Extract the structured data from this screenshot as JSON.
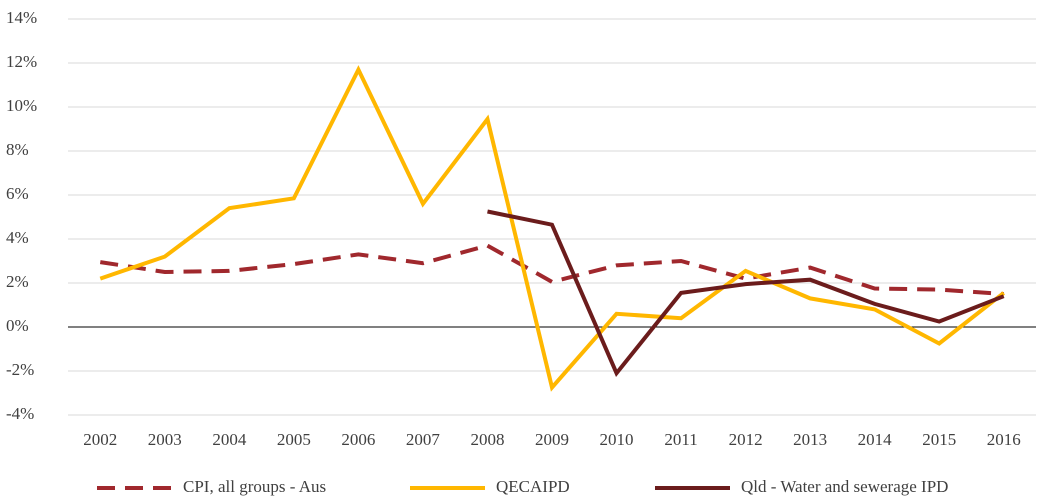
{
  "chart_data": {
    "type": "line",
    "categories": [
      "2002",
      "2003",
      "2004",
      "2005",
      "2006",
      "2007",
      "2008",
      "2009",
      "2010",
      "2011",
      "2012",
      "2013",
      "2014",
      "2015",
      "2016"
    ],
    "series": [
      {
        "name": "CPI, all groups - Aus",
        "color": "#a0282d",
        "dash": true,
        "values": [
          2.95,
          2.5,
          2.55,
          2.86,
          3.3,
          2.9,
          3.7,
          2.05,
          2.8,
          3.0,
          2.2,
          2.7,
          1.75,
          1.7,
          1.5
        ]
      },
      {
        "name": "QECAIPD",
        "color": "#ffb700",
        "dash": false,
        "values": [
          2.2,
          3.2,
          5.4,
          5.85,
          11.7,
          5.6,
          9.45,
          -2.75,
          0.6,
          0.4,
          2.55,
          1.3,
          0.8,
          -0.75,
          1.55
        ]
      },
      {
        "name": "Qld - Water and sewerage IPD",
        "color": "#6b1c1c",
        "dash": false,
        "values": [
          null,
          null,
          null,
          null,
          null,
          null,
          5.25,
          4.65,
          -2.1,
          1.55,
          1.95,
          2.15,
          1.05,
          0.25,
          1.4
        ]
      }
    ],
    "ylim": [
      -4,
      14
    ],
    "yticks": [
      {
        "value": -4,
        "label": "-4%"
      },
      {
        "value": -2,
        "label": "-2%"
      },
      {
        "value": 0,
        "label": "0%"
      },
      {
        "value": 2,
        "label": "2%"
      },
      {
        "value": 4,
        "label": "4%"
      },
      {
        "value": 6,
        "label": "6%"
      },
      {
        "value": 8,
        "label": "8%"
      },
      {
        "value": 10,
        "label": "10%"
      },
      {
        "value": 12,
        "label": "12%"
      },
      {
        "value": 14,
        "label": "14%"
      }
    ],
    "grid": true,
    "legend": "bottom"
  }
}
